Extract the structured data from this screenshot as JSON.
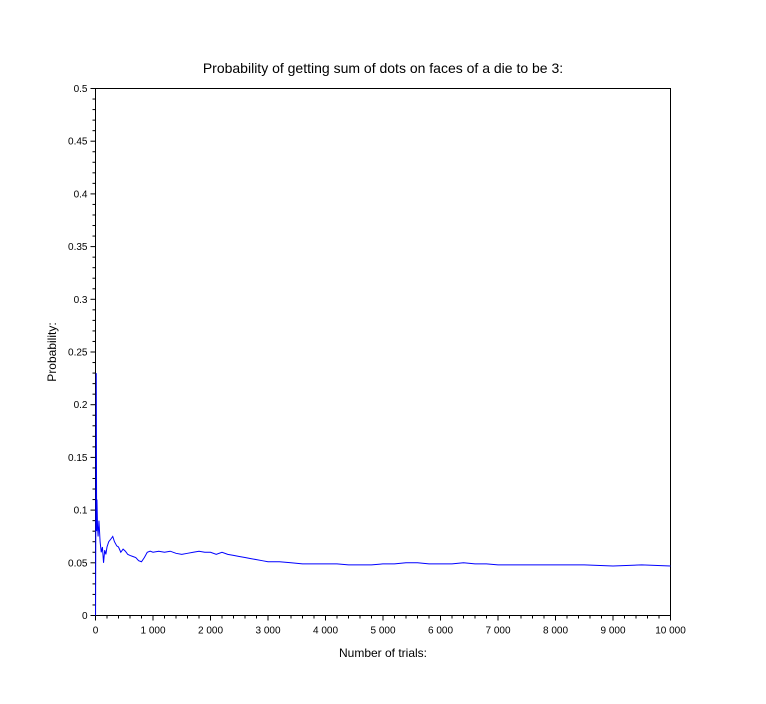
{
  "chart_data": {
    "type": "line",
    "title": "Probability of getting sum of dots on faces of a die to be 3:",
    "xlabel": "Number of trials:",
    "ylabel": "Probability:",
    "xlim": [
      0,
      10000
    ],
    "ylim": [
      0,
      0.5
    ],
    "grid": false,
    "x_ticks": [
      0,
      1000,
      2000,
      3000,
      4000,
      5000,
      6000,
      7000,
      8000,
      9000,
      10000
    ],
    "x_tick_labels": [
      "0",
      "1 000",
      "2 000",
      "3 000",
      "4 000",
      "5 000",
      "6 000",
      "7 000",
      "8 000",
      "9 000",
      "10 000"
    ],
    "y_ticks": [
      0,
      0.05,
      0.1,
      0.15,
      0.2,
      0.25,
      0.3,
      0.35,
      0.4,
      0.45,
      0.5
    ],
    "y_tick_labels": [
      "0",
      "0.05",
      "0.1",
      "0.15",
      "0.2",
      "0.25",
      "0.3",
      "0.35",
      "0.4",
      "0.45",
      "0.5"
    ],
    "series": [
      {
        "color": "#0000ff",
        "x": [
          1,
          13,
          20,
          25,
          35,
          45,
          60,
          80,
          100,
          120,
          140,
          160,
          180,
          200,
          230,
          260,
          300,
          330,
          370,
          400,
          440,
          480,
          520,
          560,
          600,
          650,
          700,
          750,
          800,
          850,
          900,
          950,
          1000,
          1100,
          1200,
          1300,
          1400,
          1500,
          1600,
          1700,
          1800,
          1900,
          2000,
          2100,
          2200,
          2300,
          2400,
          2500,
          2600,
          2700,
          2800,
          2900,
          3000,
          3200,
          3400,
          3600,
          3800,
          4000,
          4200,
          4400,
          4600,
          4800,
          5000,
          5200,
          5400,
          5600,
          5800,
          6000,
          6200,
          6400,
          6600,
          6800,
          7000,
          7500,
          8000,
          8500,
          9000,
          9500,
          10000
        ],
        "y": [
          0.0,
          0.23,
          0.08,
          0.11,
          0.085,
          0.075,
          0.09,
          0.07,
          0.06,
          0.065,
          0.05,
          0.062,
          0.058,
          0.065,
          0.07,
          0.072,
          0.075,
          0.07,
          0.066,
          0.065,
          0.06,
          0.063,
          0.061,
          0.058,
          0.057,
          0.056,
          0.055,
          0.052,
          0.051,
          0.055,
          0.06,
          0.061,
          0.06,
          0.061,
          0.06,
          0.061,
          0.059,
          0.058,
          0.059,
          0.06,
          0.061,
          0.06,
          0.06,
          0.058,
          0.06,
          0.058,
          0.057,
          0.056,
          0.055,
          0.054,
          0.053,
          0.052,
          0.051,
          0.051,
          0.05,
          0.049,
          0.049,
          0.049,
          0.049,
          0.048,
          0.048,
          0.048,
          0.049,
          0.049,
          0.05,
          0.05,
          0.049,
          0.049,
          0.049,
          0.05,
          0.049,
          0.049,
          0.048,
          0.048,
          0.048,
          0.048,
          0.047,
          0.048,
          0.047
        ]
      }
    ]
  }
}
